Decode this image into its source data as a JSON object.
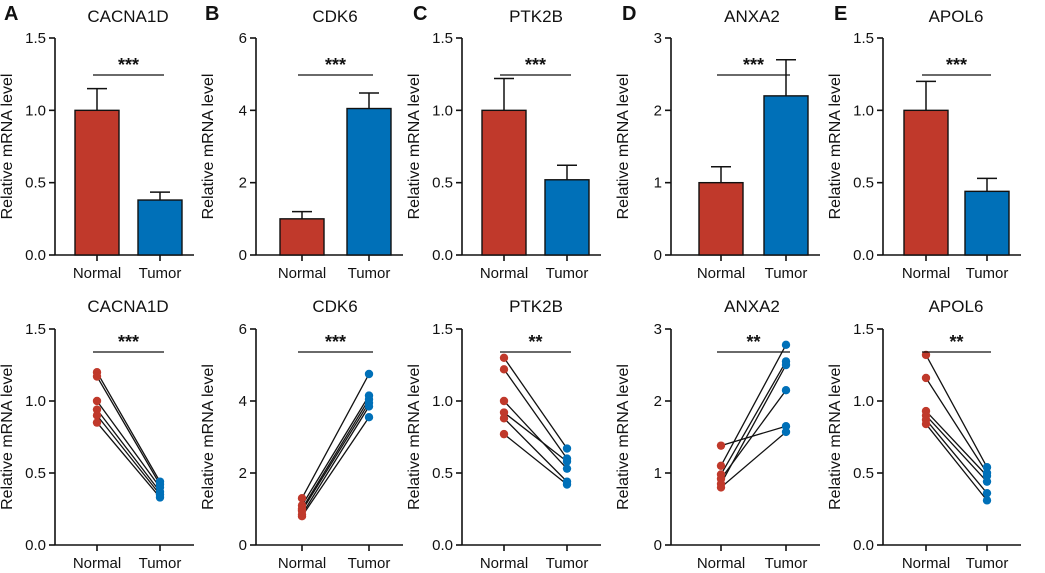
{
  "figure": {
    "letters": [
      "A",
      "B",
      "C",
      "D",
      "E"
    ]
  },
  "colors": {
    "normal": "#C0392B",
    "tumor": "#0070B8",
    "axis": "#111111"
  },
  "chart_data": [
    {
      "panel": "A",
      "row": "bar",
      "type": "bar",
      "title": "CACNA1D",
      "ylabel": "Relative mRNA level",
      "ylim": [
        0,
        1.5
      ],
      "yticks": [
        0,
        0.5,
        1,
        1.5
      ],
      "ytick_labels": [
        "0.0",
        "0.5",
        "1.0",
        "1.5"
      ],
      "categories": [
        "Normal",
        "Tumor"
      ],
      "values": [
        1.0,
        0.38
      ],
      "errors": [
        0.15,
        0.055
      ],
      "significance": "***"
    },
    {
      "panel": "B",
      "row": "bar",
      "type": "bar",
      "title": "CDK6",
      "ylabel": "Relative mRNA level",
      "ylim": [
        0,
        6
      ],
      "yticks": [
        0,
        2,
        4,
        6
      ],
      "ytick_labels": [
        "0",
        "2",
        "4",
        "6"
      ],
      "categories": [
        "Normal",
        "Tumor"
      ],
      "values": [
        1.0,
        4.05
      ],
      "errors": [
        0.2,
        0.43
      ],
      "significance": "***"
    },
    {
      "panel": "C",
      "row": "bar",
      "type": "bar",
      "title": "PTK2B",
      "ylabel": "Relative mRNA level",
      "ylim": [
        0,
        1.5
      ],
      "yticks": [
        0,
        0.5,
        1,
        1.5
      ],
      "ytick_labels": [
        "0.0",
        "0.5",
        "1.0",
        "1.5"
      ],
      "categories": [
        "Normal",
        "Tumor"
      ],
      "values": [
        1.0,
        0.52
      ],
      "errors": [
        0.22,
        0.1
      ],
      "significance": "***"
    },
    {
      "panel": "D",
      "row": "bar",
      "type": "bar",
      "title": "ANXA2",
      "ylabel": "Relative mRNA level",
      "ylim": [
        0,
        3
      ],
      "yticks": [
        0,
        1,
        2,
        3
      ],
      "ytick_labels": [
        "0",
        "1",
        "2",
        "3"
      ],
      "categories": [
        "Normal",
        "Tumor"
      ],
      "values": [
        1.0,
        2.2
      ],
      "errors": [
        0.22,
        0.5
      ],
      "significance": "***"
    },
    {
      "panel": "E",
      "row": "bar",
      "type": "bar",
      "title": "APOL6",
      "ylabel": "Relative mRNA level",
      "ylim": [
        0,
        1.5
      ],
      "yticks": [
        0,
        0.5,
        1,
        1.5
      ],
      "ytick_labels": [
        "0.0",
        "0.5",
        "1.0",
        "1.5"
      ],
      "categories": [
        "Normal",
        "Tumor"
      ],
      "values": [
        1.0,
        0.44
      ],
      "errors": [
        0.2,
        0.09
      ],
      "significance": "***"
    },
    {
      "panel": "A",
      "row": "paired",
      "type": "scatter",
      "title": "CACNA1D",
      "ylabel": "Relative mRNA level",
      "ylim": [
        0,
        1.5
      ],
      "yticks": [
        0,
        0.5,
        1,
        1.5
      ],
      "ytick_labels": [
        "0.0",
        "0.5",
        "1.0",
        "1.5"
      ],
      "categories": [
        "Normal",
        "Tumor"
      ],
      "significance": "***",
      "pairs": [
        [
          1.2,
          0.44
        ],
        [
          1.17,
          0.42
        ],
        [
          1.0,
          0.4
        ],
        [
          0.94,
          0.37
        ],
        [
          0.9,
          0.35
        ],
        [
          0.85,
          0.33
        ]
      ]
    },
    {
      "panel": "B",
      "row": "paired",
      "type": "scatter",
      "title": "CDK6",
      "ylabel": "Relative mRNA level",
      "ylim": [
        0,
        6
      ],
      "yticks": [
        0,
        2,
        4,
        6
      ],
      "ytick_labels": [
        "0",
        "2",
        "4",
        "6"
      ],
      "categories": [
        "Normal",
        "Tumor"
      ],
      "significance": "***",
      "pairs": [
        [
          1.3,
          4.75
        ],
        [
          1.1,
          4.15
        ],
        [
          1.0,
          4.05
        ],
        [
          0.95,
          3.95
        ],
        [
          0.85,
          3.85
        ],
        [
          0.8,
          3.55
        ]
      ]
    },
    {
      "panel": "C",
      "row": "paired",
      "type": "scatter",
      "title": "PTK2B",
      "ylabel": "Relative mRNA level",
      "ylim": [
        0,
        1.5
      ],
      "yticks": [
        0,
        0.5,
        1,
        1.5
      ],
      "ytick_labels": [
        "0.0",
        "0.5",
        "1.0",
        "1.5"
      ],
      "categories": [
        "Normal",
        "Tumor"
      ],
      "significance": "**",
      "pairs": [
        [
          1.3,
          0.67
        ],
        [
          1.22,
          0.6
        ],
        [
          1.0,
          0.53
        ],
        [
          0.92,
          0.58
        ],
        [
          0.88,
          0.44
        ],
        [
          0.77,
          0.42
        ]
      ]
    },
    {
      "panel": "D",
      "row": "paired",
      "type": "scatter",
      "title": "ANXA2",
      "ylabel": "Relative mRNA level",
      "ylim": [
        0,
        3
      ],
      "yticks": [
        0,
        1,
        2,
        3
      ],
      "ytick_labels": [
        "0",
        "1",
        "2",
        "3"
      ],
      "categories": [
        "Normal",
        "Tumor"
      ],
      "significance": "**",
      "pairs": [
        [
          1.38,
          1.65
        ],
        [
          1.1,
          2.78
        ],
        [
          0.98,
          2.55
        ],
        [
          0.92,
          2.15
        ],
        [
          0.85,
          2.5
        ],
        [
          0.8,
          1.57
        ]
      ]
    },
    {
      "panel": "E",
      "row": "paired",
      "type": "scatter",
      "title": "APOL6",
      "ylabel": "Relative mRNA level",
      "ylim": [
        0,
        1.5
      ],
      "yticks": [
        0,
        0.5,
        1,
        1.5
      ],
      "ytick_labels": [
        "0.0",
        "0.5",
        "1.0",
        "1.5"
      ],
      "categories": [
        "Normal",
        "Tumor"
      ],
      "significance": "**",
      "pairs": [
        [
          1.32,
          0.54
        ],
        [
          1.16,
          0.5
        ],
        [
          0.93,
          0.48
        ],
        [
          0.9,
          0.44
        ],
        [
          0.87,
          0.36
        ],
        [
          0.84,
          0.31
        ]
      ]
    }
  ]
}
